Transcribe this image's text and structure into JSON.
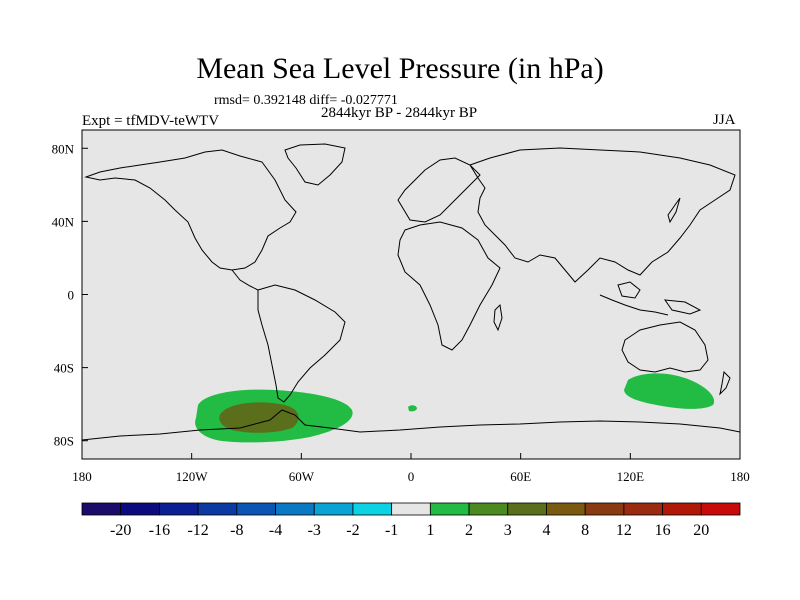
{
  "title": "Mean Sea Level Pressure (in hPa)",
  "stats": "rmsd= 0.392148 diff= -0.027771",
  "period": "2844kyr BP - 2844kyr BP",
  "experiment": "Expt = tfMDV-teWTV",
  "season": "JJA",
  "map": {
    "background_color": "#e6e6e6",
    "lat_labels": [
      "80N",
      "40N",
      "0",
      "40S",
      "80S"
    ],
    "lon_labels": [
      "180",
      "120W",
      "60W",
      "0",
      "60E",
      "120E",
      "180"
    ],
    "lat_ticks": [
      80,
      40,
      0,
      -40,
      -80
    ],
    "lon_ticks": [
      -180,
      -120,
      -60,
      0,
      60,
      120,
      180
    ],
    "anomaly_regions": [
      {
        "name": "south-pacific-positive-anomaly",
        "level": "1 to 2",
        "color": "#22bb44"
      },
      {
        "name": "south-pacific-core-anomaly",
        "level": "3 to 4",
        "color": "#5a6e1c"
      },
      {
        "name": "south-atlantic-small-anomaly",
        "level": "1 to 2",
        "color": "#22bb44"
      },
      {
        "name": "southern-indian-ocean-anomaly",
        "level": "1 to 2",
        "color": "#22bb44"
      }
    ]
  },
  "colorbar": {
    "labels": [
      "-20",
      "-16",
      "-12",
      "-8",
      "-4",
      "-3",
      "-2",
      "-1",
      "1",
      "2",
      "3",
      "4",
      "8",
      "12",
      "16",
      "20"
    ],
    "colors": [
      "#1b0b6b",
      "#0b0b7f",
      "#0b1f93",
      "#0b3aa3",
      "#0b55b3",
      "#0b78c3",
      "#0ba3d3",
      "#0bd3e3",
      "#e6e6e6",
      "#22bb44",
      "#4a8a20",
      "#5a6e1c",
      "#7a5a10",
      "#8a3a10",
      "#9a2a10",
      "#b01808",
      "#c80a0a"
    ]
  }
}
